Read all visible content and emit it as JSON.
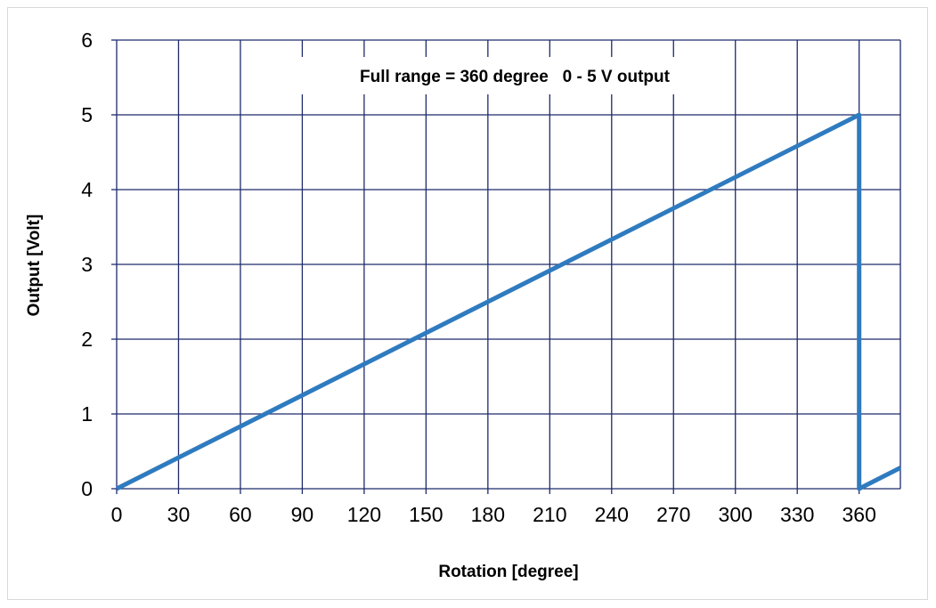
{
  "chart_data": {
    "type": "line",
    "title": "",
    "annotation": "Full range = 360 degree   0 - 5 V output",
    "xlabel": "Rotation [degree]",
    "ylabel": "Output [Volt]",
    "xlim": [
      0,
      380
    ],
    "ylim": [
      0,
      6
    ],
    "x_ticks": [
      0,
      30,
      60,
      90,
      120,
      150,
      180,
      210,
      240,
      270,
      300,
      330,
      360
    ],
    "x_tick_labels": [
      "0",
      "30",
      "60",
      "90",
      "120",
      "150",
      "180",
      "210",
      "240",
      "270",
      "300",
      "330",
      "360"
    ],
    "y_ticks": [
      0,
      1,
      2,
      3,
      4,
      5,
      6
    ],
    "y_tick_labels": [
      "0",
      "1",
      "2",
      "3",
      "4",
      "5",
      "6"
    ],
    "grid": true,
    "legend": "none",
    "series": [
      {
        "color": "#2f7bbf",
        "x": [
          0,
          360,
          360,
          380
        ],
        "y": [
          0,
          5,
          0,
          0.28
        ]
      }
    ],
    "colors": {
      "grid": "#1f2a6b",
      "line": "#2f7bbf"
    }
  }
}
